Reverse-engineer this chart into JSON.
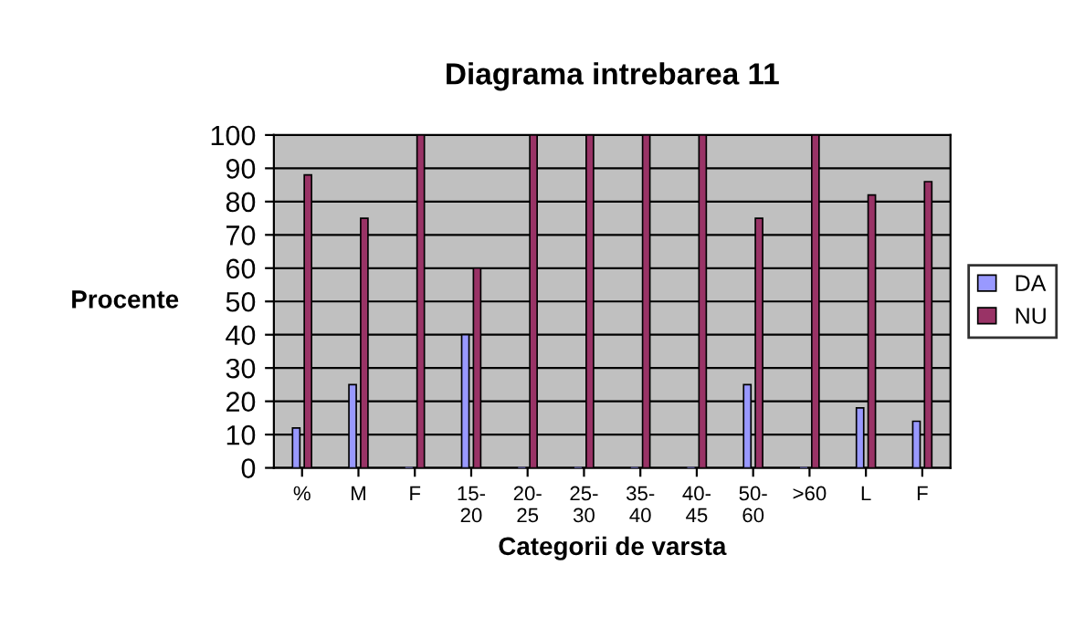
{
  "chart_data": {
    "type": "bar",
    "title": "Diagrama intrebarea 11",
    "xlabel": "Categorii de varsta",
    "ylabel": "Procente",
    "categories": [
      "%",
      "M",
      "F",
      "15-\n20",
      "20-\n25",
      "25-\n30",
      "35-\n40",
      "40-\n45",
      "50-\n60",
      ">60",
      "L",
      "F"
    ],
    "series": [
      {
        "name": "DA",
        "color": "#9999ff",
        "values": [
          12,
          25,
          0,
          40,
          0,
          0,
          0,
          0,
          25,
          0,
          18,
          14
        ]
      },
      {
        "name": "NU",
        "color": "#993366",
        "values": [
          88,
          75,
          100,
          60,
          100,
          100,
          100,
          100,
          75,
          100,
          82,
          86
        ]
      }
    ],
    "ylim": [
      0,
      100
    ],
    "yticks": [
      0,
      10,
      20,
      30,
      40,
      50,
      60,
      70,
      80,
      90,
      100
    ],
    "grid": "y",
    "legend": "right"
  }
}
